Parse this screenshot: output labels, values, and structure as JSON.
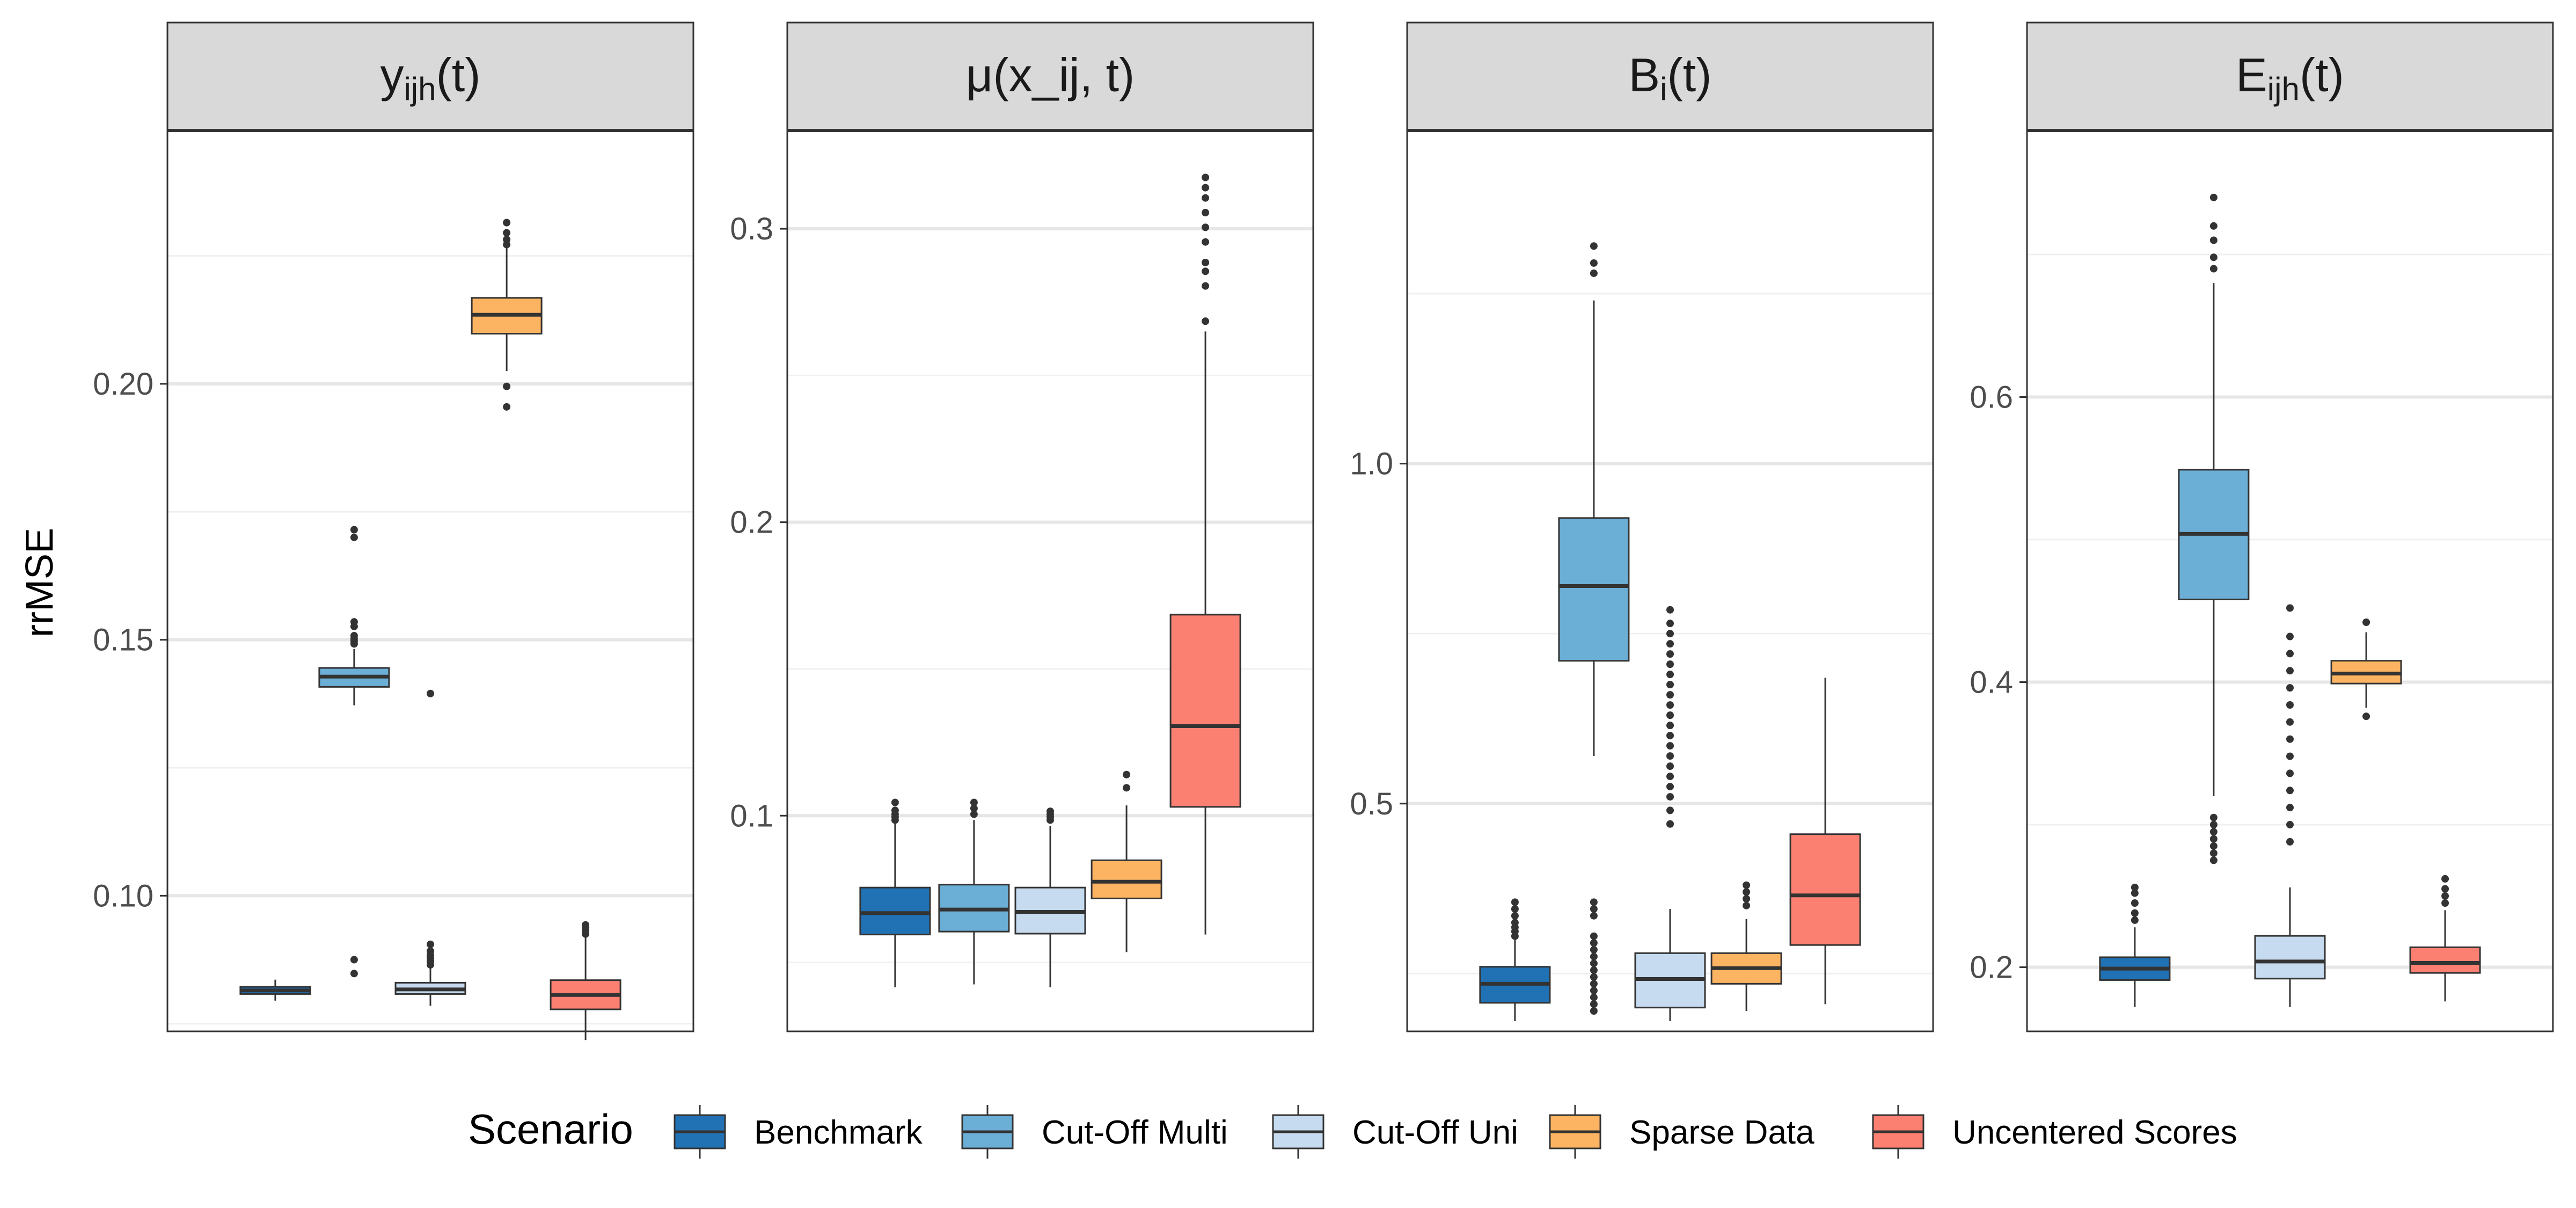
{
  "chart_data": {
    "type": "boxplot",
    "ylabel": "rrMSE",
    "legend": {
      "title": "Scenario",
      "placement": "bottom",
      "items": [
        {
          "label": "Benchmark",
          "color": "#2171b5"
        },
        {
          "label": "Cut-Off Multi",
          "color": "#6baed6"
        },
        {
          "label": "Cut-Off Uni",
          "color": "#c6dbef"
        },
        {
          "label": "Sparse Data",
          "color": "#fdb462"
        },
        {
          "label": "Uncentered Scores",
          "color": "#fb8072"
        }
      ]
    },
    "panels": [
      {
        "strip_main": "y",
        "strip_sub": "ijh",
        "strip_arg": "t",
        "ylim": [
          0.0735,
          0.2495
        ],
        "yticks": [
          0.1,
          0.15,
          0.2
        ],
        "ytick_labels": [
          "0.10",
          "0.15",
          "0.20"
        ],
        "minor_ticks": [
          0.075,
          0.125,
          0.175,
          0.225
        ],
        "boxes": [
          {
            "scenario": "Benchmark",
            "q1": 0.0808,
            "median": 0.0815,
            "q3": 0.0822,
            "lower": 0.0795,
            "upper": 0.0836,
            "outliers": []
          },
          {
            "scenario": "Cut-Off Multi",
            "q1": 0.1408,
            "median": 0.1428,
            "q3": 0.1445,
            "lower": 0.1372,
            "upper": 0.1482,
            "outliers": [
              0.1492,
              0.1497,
              0.1502,
              0.1508,
              0.1526,
              0.1535,
              0.17,
              0.1715,
              0.0875,
              0.0848
            ]
          },
          {
            "scenario": "Cut-Off Uni",
            "q1": 0.0808,
            "median": 0.0817,
            "q3": 0.083,
            "lower": 0.0785,
            "upper": 0.0859,
            "outliers": [
              0.0865,
              0.0872,
              0.0878,
              0.0884,
              0.0892,
              0.0905,
              0.1395
            ]
          },
          {
            "scenario": "Sparse Data",
            "q1": 0.2098,
            "median": 0.2135,
            "q3": 0.2168,
            "lower": 0.2025,
            "upper": 0.2265,
            "outliers": [
              0.1995,
              0.1955,
              0.2272,
              0.2282,
              0.2295,
              0.2315
            ]
          },
          {
            "scenario": "Uncentered Scores",
            "q1": 0.0778,
            "median": 0.0806,
            "q3": 0.0835,
            "lower": 0.0718,
            "upper": 0.0918,
            "outliers": [
              0.0925,
              0.0932,
              0.0938,
              0.0943
            ]
          }
        ]
      },
      {
        "strip_main": "μ",
        "strip_sub": "",
        "strip_arg": "x_ij, t",
        "ylim": [
          0.0265,
          0.3335
        ],
        "yticks": [
          0.1,
          0.2,
          0.3
        ],
        "ytick_labels": [
          "0.1",
          "0.2",
          "0.3"
        ],
        "minor_ticks": [
          0.05,
          0.15,
          0.25
        ],
        "boxes": [
          {
            "scenario": "Benchmark",
            "q1": 0.0595,
            "median": 0.0668,
            "q3": 0.0755,
            "lower": 0.0415,
            "upper": 0.0975,
            "outliers": [
              0.0985,
              0.0995,
              0.1005,
              0.1018,
              0.1045
            ]
          },
          {
            "scenario": "Cut-Off Multi",
            "q1": 0.0605,
            "median": 0.068,
            "q3": 0.0765,
            "lower": 0.0425,
            "upper": 0.0985,
            "outliers": [
              0.1005,
              0.1025,
              0.1045
            ]
          },
          {
            "scenario": "Cut-Off Uni",
            "q1": 0.0598,
            "median": 0.0672,
            "q3": 0.0755,
            "lower": 0.0415,
            "upper": 0.0965,
            "outliers": [
              0.0985,
              0.0995,
              0.1005,
              0.1015
            ]
          },
          {
            "scenario": "Sparse Data",
            "q1": 0.0718,
            "median": 0.0775,
            "q3": 0.0848,
            "lower": 0.0535,
            "upper": 0.1035,
            "outliers": [
              0.1095,
              0.114
            ]
          },
          {
            "scenario": "Uncentered Scores",
            "q1": 0.103,
            "median": 0.1305,
            "q3": 0.1685,
            "lower": 0.0595,
            "upper": 0.265,
            "outliers": [
              0.2685,
              0.2805,
              0.2855,
              0.2885,
              0.2955,
              0.3005,
              0.3055,
              0.3105,
              0.314,
              0.3175
            ]
          }
        ]
      },
      {
        "strip_main": "B",
        "strip_sub": "i",
        "strip_arg": "t",
        "ylim": [
          0.165,
          1.49
        ],
        "yticks": [
          0.5,
          1.0
        ],
        "ytick_labels": [
          "0.5",
          "1.0"
        ],
        "minor_ticks": [
          0.25,
          0.75,
          1.25
        ],
        "boxes": [
          {
            "scenario": "Benchmark",
            "q1": 0.207,
            "median": 0.235,
            "q3": 0.26,
            "lower": 0.18,
            "upper": 0.3,
            "outliers": [
              0.305,
              0.312,
              0.318,
              0.325,
              0.335,
              0.345,
              0.355
            ]
          },
          {
            "scenario": "Cut-Off Multi",
            "q1": 0.71,
            "median": 0.82,
            "q3": 0.92,
            "lower": 0.57,
            "upper": 1.24,
            "outliers": [
              1.28,
              1.295,
              1.32,
              0.355,
              0.345,
              0.335,
              0.305,
              0.295,
              0.285,
              0.275,
              0.265,
              0.255,
              0.245,
              0.235,
              0.225,
              0.215,
              0.205,
              0.195
            ]
          },
          {
            "scenario": "Cut-Off Uni",
            "q1": 0.2,
            "median": 0.242,
            "q3": 0.28,
            "lower": 0.18,
            "upper": 0.345,
            "outliers": [
              0.47,
              0.49,
              0.51,
              0.525,
              0.54,
              0.555,
              0.57,
              0.585,
              0.6,
              0.615,
              0.63,
              0.645,
              0.66,
              0.675,
              0.69,
              0.705,
              0.72,
              0.735,
              0.75,
              0.765,
              0.785
            ]
          },
          {
            "scenario": "Sparse Data",
            "q1": 0.235,
            "median": 0.258,
            "q3": 0.28,
            "lower": 0.195,
            "upper": 0.33,
            "outliers": [
              0.35,
              0.36,
              0.37,
              0.38
            ]
          },
          {
            "scenario": "Uncentered Scores",
            "q1": 0.292,
            "median": 0.365,
            "q3": 0.455,
            "lower": 0.205,
            "upper": 0.685,
            "outliers": []
          }
        ]
      },
      {
        "strip_main": "E",
        "strip_sub": "ijh",
        "strip_arg": "t",
        "ylim": [
          0.155,
          0.787
        ],
        "yticks": [
          0.2,
          0.4,
          0.6
        ],
        "ytick_labels": [
          "0.2",
          "0.4",
          "0.6"
        ],
        "minor_ticks": [
          0.3,
          0.5,
          0.7
        ],
        "boxes": [
          {
            "scenario": "Benchmark",
            "q1": 0.191,
            "median": 0.199,
            "q3": 0.207,
            "lower": 0.172,
            "upper": 0.228,
            "outliers": [
              0.233,
              0.238,
              0.245,
              0.252,
              0.256
            ]
          },
          {
            "scenario": "Cut-Off Multi",
            "q1": 0.458,
            "median": 0.504,
            "q3": 0.549,
            "lower": 0.32,
            "upper": 0.68,
            "outliers": [
              0.275,
              0.28,
              0.285,
              0.29,
              0.295,
              0.3,
              0.305,
              0.69,
              0.698,
              0.71,
              0.72,
              0.74
            ]
          },
          {
            "scenario": "Cut-Off Uni",
            "q1": 0.192,
            "median": 0.204,
            "q3": 0.222,
            "lower": 0.172,
            "upper": 0.256,
            "outliers": [
              0.288,
              0.3,
              0.312,
              0.324,
              0.336,
              0.348,
              0.36,
              0.372,
              0.384,
              0.396,
              0.408,
              0.42,
              0.432,
              0.452
            ]
          },
          {
            "scenario": "Sparse Data",
            "q1": 0.399,
            "median": 0.406,
            "q3": 0.415,
            "lower": 0.382,
            "upper": 0.435,
            "outliers": [
              0.376,
              0.442
            ]
          },
          {
            "scenario": "Uncentered Scores",
            "q1": 0.196,
            "median": 0.203,
            "q3": 0.214,
            "lower": 0.176,
            "upper": 0.24,
            "outliers": [
              0.245,
              0.25,
              0.255,
              0.262
            ]
          }
        ]
      }
    ]
  }
}
